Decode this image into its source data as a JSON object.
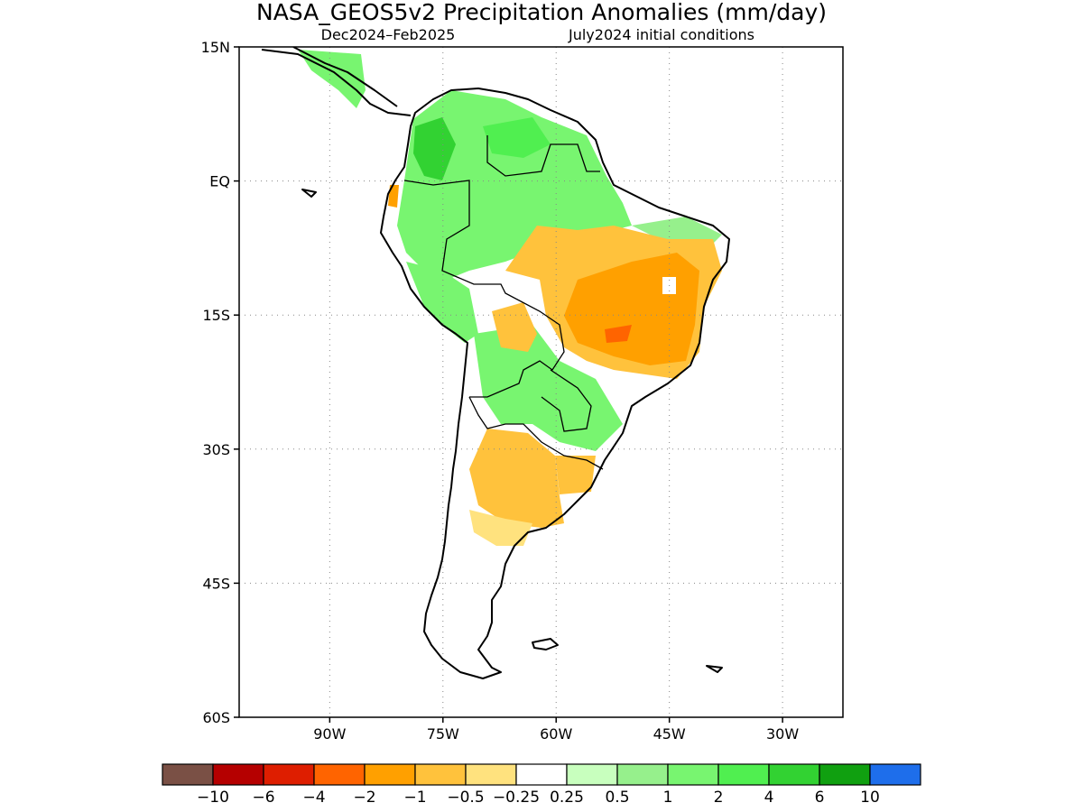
{
  "title": "NASA_GEOS5v2 Precipitation Anomalies (mm/day)",
  "subtitle_left": "Dec2024–Feb2025",
  "subtitle_right": "July2024 initial conditions",
  "map": {
    "lon_range": [
      -102,
      -22
    ],
    "lat_range": [
      -60,
      15
    ],
    "lat_ticks": [
      {
        "value": 15,
        "label": "15N"
      },
      {
        "value": 0,
        "label": "EQ"
      },
      {
        "value": -15,
        "label": "15S"
      },
      {
        "value": -30,
        "label": "30S"
      },
      {
        "value": -45,
        "label": "45S"
      },
      {
        "value": -60,
        "label": "60S"
      }
    ],
    "lon_ticks": [
      {
        "value": -90,
        "label": "90W"
      },
      {
        "value": -75,
        "label": "75W"
      },
      {
        "value": -60,
        "label": "60W"
      },
      {
        "value": -45,
        "label": "45W"
      },
      {
        "value": -30,
        "label": "30W"
      }
    ],
    "grid": "dotted"
  },
  "colorbar": {
    "colors": [
      "#7a5045",
      "#b50000",
      "#de1e00",
      "#ff6400",
      "#ffa000",
      "#ffc23c",
      "#ffe27e",
      "#ffffff",
      "#c8ffbe",
      "#96f08c",
      "#78f570",
      "#50ef50",
      "#32d232",
      "#10a010",
      "#1e6eeb"
    ],
    "labels": [
      "−10",
      "−6",
      "−4",
      "−2",
      "−1",
      "−0.5",
      "−0.25",
      "0.25",
      "0.5",
      "1",
      "2",
      "4",
      "6",
      "10"
    ]
  },
  "regions": [
    {
      "name": "northwest-wet",
      "color": "#78f570"
    },
    {
      "name": "amazon-wet",
      "color": "#78f570"
    },
    {
      "name": "colombia-core",
      "color": "#32d232"
    },
    {
      "name": "brazil-dry",
      "color": "#ffc23c"
    },
    {
      "name": "brazil-core-dry",
      "color": "#ffa000"
    },
    {
      "name": "paraguay-wet",
      "color": "#78f570"
    },
    {
      "name": "argentina-dry",
      "color": "#ffc23c"
    },
    {
      "name": "patagonia-dry",
      "color": "#ffe27e"
    }
  ]
}
